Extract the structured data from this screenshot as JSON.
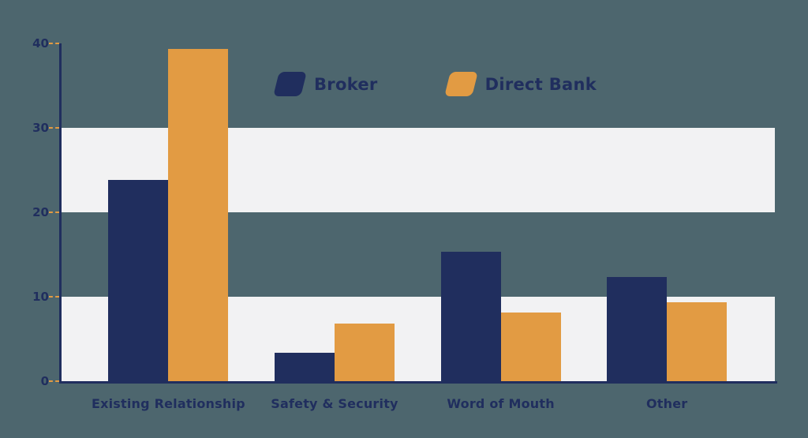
{
  "colors": {
    "background": "#4d666e",
    "band": "#f2f2f3",
    "axis": "#202e5e",
    "tick_dash": "#e29b43",
    "text": "#202e5e"
  },
  "legend": {
    "position": "top-center"
  },
  "chart_data": {
    "type": "bar",
    "categories": [
      "Existing Relationship",
      "Safety & Security",
      "Word of Mouth",
      "Other"
    ],
    "series": [
      {
        "name": "Broker",
        "color": "#202e5e",
        "values": [
          23.8,
          3.4,
          15.3,
          12.3
        ]
      },
      {
        "name": "Direct Bank",
        "color": "#e29b43",
        "values": [
          39.3,
          6.8,
          8.1,
          9.3
        ]
      }
    ],
    "ylim": [
      0,
      40
    ],
    "yticks": [
      0,
      10,
      20,
      30,
      40
    ],
    "highlight_bands": [
      [
        0,
        10
      ],
      [
        20,
        30
      ]
    ],
    "grid": false,
    "legend_position": "top-center"
  }
}
